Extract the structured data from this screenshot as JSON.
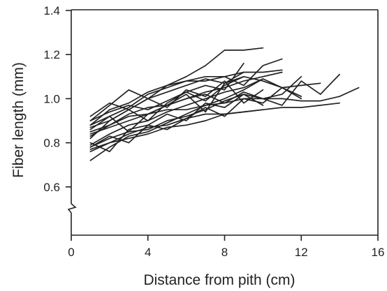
{
  "chart_data": {
    "type": "line",
    "title": "",
    "xlabel": "Distance from pith (cm)",
    "ylabel": "Fiber length (mm)",
    "xlim": [
      0,
      16
    ],
    "ylim": [
      0.4,
      1.4
    ],
    "y_axis_break": "between 0.4 and 0.6",
    "x_ticks": [
      0,
      4,
      8,
      12,
      16
    ],
    "x_tick_labels": [
      "0",
      "4",
      "8",
      "12",
      "16"
    ],
    "y_ticks": [
      0.6,
      0.8,
      1.0,
      1.2,
      1.4
    ],
    "y_tick_labels": [
      "0.6",
      "0.8",
      "1.0",
      "1.2",
      "1.4"
    ],
    "grid": false,
    "legend": "none",
    "line_color": "#222222",
    "series": [
      {
        "x": [
          1,
          2,
          3,
          4,
          5,
          6,
          7,
          8,
          9,
          10
        ],
        "y": [
          0.82,
          0.9,
          0.95,
          1.0,
          1.06,
          1.1,
          1.15,
          1.22,
          1.22,
          1.23
        ]
      },
      {
        "x": [
          1,
          2,
          3,
          4,
          5,
          6,
          7,
          8,
          9,
          10,
          11
        ],
        "y": [
          0.88,
          0.95,
          0.98,
          1.03,
          1.06,
          1.08,
          1.1,
          1.1,
          1.12,
          1.12,
          1.13
        ]
      },
      {
        "x": [
          1,
          2,
          3,
          4,
          5,
          6,
          7,
          8,
          9,
          10,
          11,
          12,
          13,
          14,
          15
        ],
        "y": [
          0.85,
          0.88,
          0.92,
          0.93,
          0.95,
          0.95,
          0.97,
          0.98,
          1.0,
          1.0,
          1.0,
          0.99,
          0.99,
          1.01,
          1.05
        ]
      },
      {
        "x": [
          1,
          2,
          3,
          4,
          5,
          6,
          7,
          8,
          9,
          10,
          11,
          12,
          13,
          14
        ],
        "y": [
          0.76,
          0.8,
          0.84,
          0.87,
          0.88,
          0.91,
          0.93,
          0.93,
          0.94,
          0.95,
          0.96,
          0.96,
          0.97,
          0.98
        ]
      },
      {
        "x": [
          1,
          2,
          3,
          4,
          5,
          6,
          7,
          8,
          9,
          10,
          11,
          12,
          13,
          14
        ],
        "y": [
          0.78,
          0.82,
          0.85,
          0.86,
          0.9,
          0.92,
          0.95,
          0.99,
          1.02,
          1.0,
          0.97,
          1.08,
          1.02,
          1.11
        ]
      },
      {
        "x": [
          1,
          2,
          3,
          4,
          5,
          6,
          7,
          8,
          9,
          10,
          11,
          12,
          13
        ],
        "y": [
          0.9,
          0.97,
          1.04,
          1.0,
          1.03,
          1.06,
          1.09,
          1.07,
          1.1,
          1.08,
          1.05,
          1.06,
          1.07
        ]
      },
      {
        "x": [
          1,
          2,
          3,
          4,
          5,
          6,
          7,
          8,
          9,
          10,
          11,
          12
        ],
        "y": [
          0.72,
          0.78,
          0.83,
          0.85,
          0.89,
          0.93,
          0.97,
          1.0,
          1.04,
          1.09,
          1.05,
          1.0
        ]
      },
      {
        "x": [
          1,
          2,
          3,
          4,
          5,
          6,
          7,
          8,
          9,
          10,
          11
        ],
        "y": [
          0.88,
          0.92,
          0.96,
          1.02,
          1.05,
          1.08,
          1.08,
          1.1,
          1.06,
          1.15,
          1.18
        ]
      },
      {
        "x": [
          1,
          2,
          3,
          4,
          5,
          6,
          7,
          8,
          9,
          10
        ],
        "y": [
          0.79,
          0.84,
          0.88,
          0.9,
          0.94,
          0.97,
          1.0,
          1.03,
          1.05,
          1.09
        ]
      },
      {
        "x": [
          1,
          2,
          3,
          4,
          5,
          6,
          7,
          8,
          9,
          10,
          11
        ],
        "y": [
          0.84,
          0.87,
          0.9,
          0.93,
          0.97,
          1.0,
          1.03,
          1.05,
          1.08,
          1.1,
          1.12
        ]
      },
      {
        "x": [
          1,
          2,
          3,
          4,
          5,
          6,
          7,
          8,
          9
        ],
        "y": [
          0.86,
          0.92,
          0.85,
          0.93,
          0.97,
          1.02,
          0.94,
          1.07,
          1.12
        ]
      },
      {
        "x": [
          1,
          2,
          3,
          4,
          5,
          6,
          7,
          8,
          9,
          10
        ],
        "y": [
          0.92,
          0.98,
          0.95,
          1.0,
          0.96,
          1.04,
          1.01,
          1.08,
          0.98,
          1.04
        ]
      },
      {
        "x": [
          1,
          2,
          3,
          4,
          5,
          6,
          7,
          8,
          9,
          10,
          11,
          12
        ],
        "y": [
          0.8,
          0.76,
          0.86,
          0.88,
          0.86,
          0.91,
          0.96,
          0.92,
          1.0,
          0.98,
          1.05,
          1.01
        ]
      },
      {
        "x": [
          1,
          2,
          3,
          4,
          5,
          6,
          7,
          8,
          9,
          10,
          11,
          12
        ],
        "y": [
          0.83,
          0.88,
          0.93,
          0.96,
          0.97,
          1.0,
          1.02,
          0.98,
          1.03,
          1.0,
          1.02,
          1.1
        ]
      },
      {
        "x": [
          1,
          2,
          3,
          4,
          5,
          6,
          7,
          8,
          9
        ],
        "y": [
          0.87,
          0.9,
          0.95,
          0.9,
          0.98,
          1.03,
          1.06,
          1.04,
          1.16
        ]
      },
      {
        "x": [
          1,
          2,
          3,
          4,
          5,
          6,
          7,
          8,
          9,
          10
        ],
        "y": [
          0.78,
          0.83,
          0.8,
          0.88,
          0.93,
          0.9,
          0.98,
          0.96,
          1.02,
          0.97
        ]
      },
      {
        "x": [
          1,
          2,
          3,
          4,
          5,
          6,
          7,
          8,
          9
        ],
        "y": [
          0.9,
          0.94,
          0.97,
          0.95,
          0.99,
          1.03,
          0.99,
          1.06,
          1.1
        ]
      },
      {
        "x": [
          1,
          2,
          3,
          4,
          5,
          6,
          7,
          8,
          9,
          10
        ],
        "y": [
          0.77,
          0.8,
          0.82,
          0.84,
          0.87,
          0.88,
          0.9,
          0.93,
          0.94,
          0.95
        ]
      }
    ]
  }
}
